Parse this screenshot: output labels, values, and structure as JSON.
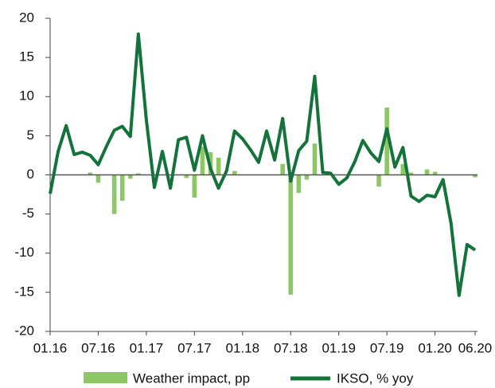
{
  "chart_data": {
    "type": "bar-line",
    "categories": [
      "01.16",
      null,
      null,
      null,
      null,
      null,
      "07.16",
      null,
      null,
      null,
      null,
      null,
      "01.17",
      null,
      null,
      null,
      null,
      null,
      "07.17",
      null,
      null,
      null,
      null,
      null,
      "01.18",
      null,
      null,
      null,
      null,
      null,
      "07.18",
      null,
      null,
      null,
      null,
      null,
      "01.19",
      null,
      null,
      null,
      null,
      null,
      "07.19",
      null,
      null,
      null,
      null,
      null,
      "01.20",
      null,
      null,
      null,
      null,
      "06.20"
    ],
    "series": [
      {
        "name": "Weather impact, pp",
        "type": "bar",
        "color": "#8cc665",
        "values": [
          0,
          0,
          0,
          0,
          0,
          0.3,
          -1.0,
          0,
          -5.0,
          -3.3,
          -0.5,
          0.2,
          0,
          0,
          0,
          0,
          0,
          -0.4,
          -2.9,
          3.6,
          2.9,
          2.2,
          0,
          0.5,
          0,
          0,
          0,
          0,
          0,
          1.4,
          -15.3,
          -2.3,
          -0.6,
          4.0,
          0,
          0,
          0,
          0,
          0,
          0,
          0,
          -1.5,
          8.6,
          0,
          1.4,
          0.3,
          0,
          0.7,
          0.4,
          0,
          0,
          0,
          0,
          -0.3
        ]
      },
      {
        "name": "IKSO, % yoy",
        "type": "line",
        "color": "#13733a",
        "values": [
          -2.4,
          3.0,
          6.3,
          2.6,
          2.9,
          2.5,
          1.3,
          3.6,
          5.7,
          6.2,
          4.9,
          18.0,
          7.0,
          -1.6,
          3.0,
          -1.7,
          4.5,
          4.8,
          0.6,
          5.0,
          0.8,
          -1.7,
          0.5,
          5.6,
          4.6,
          3.2,
          1.6,
          5.6,
          1.9,
          7.2,
          -0.8,
          3.1,
          4.3,
          12.6,
          0.3,
          0.2,
          -1.2,
          -0.4,
          1.7,
          4.4,
          2.8,
          1.7,
          5.9,
          1.0,
          3.5,
          -2.7,
          -3.4,
          -2.6,
          -2.8,
          -0.6,
          -6.2,
          -15.4,
          -8.9,
          -9.6
        ]
      }
    ],
    "ylim": [
      -20,
      20
    ],
    "yticks": [
      -20,
      -15,
      -10,
      -5,
      0,
      5,
      10,
      15,
      20
    ]
  }
}
